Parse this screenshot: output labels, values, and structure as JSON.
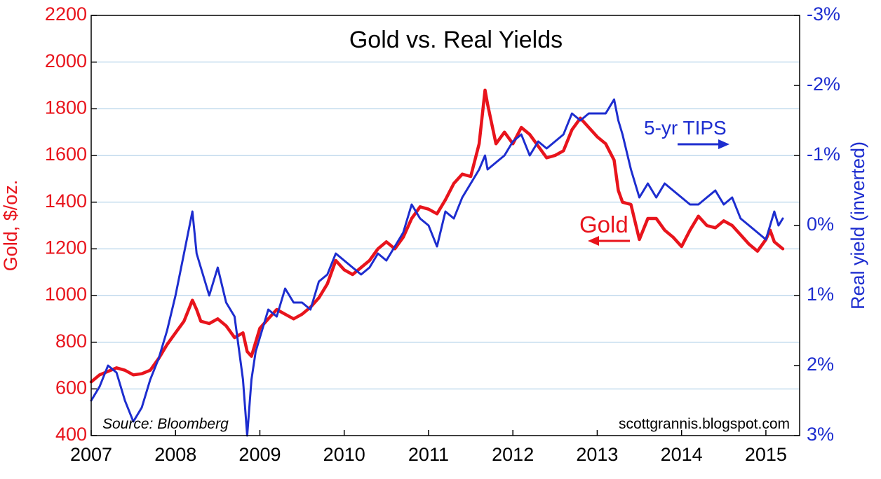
{
  "chart_data": {
    "type": "line",
    "title": "Gold vs. Real Yields",
    "ylabel_left": "Gold, $/oz.",
    "ylabel_right": "Real yield (inverted)",
    "source": "Source: Bloomberg",
    "credit": "scottgrannis.blogspot.com",
    "xlim": [
      2007,
      2015.4
    ],
    "ylim_left": [
      400,
      2200
    ],
    "ylim_right": [
      3,
      -3
    ],
    "x_ticks": [
      2007,
      2008,
      2009,
      2010,
      2011,
      2012,
      2013,
      2014,
      2015
    ],
    "x_tick_labels": [
      "2007",
      "2008",
      "2009",
      "2010",
      "2011",
      "2012",
      "2013",
      "2014",
      "2015"
    ],
    "y_left_ticks": [
      400,
      600,
      800,
      1000,
      1200,
      1400,
      1600,
      1800,
      2000,
      2200
    ],
    "y_left_tick_labels": [
      "400",
      "600",
      "800",
      "1000",
      "1200",
      "1400",
      "1600",
      "1800",
      "2000",
      "2200"
    ],
    "y_right_ticks": [
      3,
      2,
      1,
      0,
      -1,
      -2,
      -3
    ],
    "y_right_tick_labels": [
      "3%",
      "2%",
      "1%",
      "0%",
      "-1%",
      "-2%",
      "-3%"
    ],
    "grid": "horizontal",
    "colors": {
      "gold": "#e8141c",
      "tips": "#1d2dcf",
      "grid": "#9fc6e3"
    },
    "annotations": {
      "gold_label": "Gold",
      "tips_label": "5-yr TIPS"
    },
    "series": [
      {
        "axis": "left",
        "color": "#e8141c",
        "points": [
          [
            2007.0,
            630
          ],
          [
            2007.1,
            660
          ],
          [
            2007.2,
            675
          ],
          [
            2007.3,
            690
          ],
          [
            2007.4,
            680
          ],
          [
            2007.5,
            660
          ],
          [
            2007.6,
            665
          ],
          [
            2007.7,
            680
          ],
          [
            2007.8,
            730
          ],
          [
            2007.9,
            790
          ],
          [
            2008.0,
            840
          ],
          [
            2008.1,
            890
          ],
          [
            2008.2,
            980
          ],
          [
            2008.25,
            940
          ],
          [
            2008.3,
            890
          ],
          [
            2008.4,
            880
          ],
          [
            2008.5,
            900
          ],
          [
            2008.6,
            870
          ],
          [
            2008.7,
            820
          ],
          [
            2008.8,
            840
          ],
          [
            2008.85,
            760
          ],
          [
            2008.9,
            740
          ],
          [
            2008.95,
            800
          ],
          [
            2009.0,
            860
          ],
          [
            2009.1,
            900
          ],
          [
            2009.2,
            940
          ],
          [
            2009.3,
            920
          ],
          [
            2009.4,
            900
          ],
          [
            2009.5,
            920
          ],
          [
            2009.6,
            950
          ],
          [
            2009.7,
            990
          ],
          [
            2009.8,
            1050
          ],
          [
            2009.9,
            1150
          ],
          [
            2010.0,
            1110
          ],
          [
            2010.1,
            1090
          ],
          [
            2010.2,
            1120
          ],
          [
            2010.3,
            1150
          ],
          [
            2010.4,
            1200
          ],
          [
            2010.5,
            1230
          ],
          [
            2010.6,
            1200
          ],
          [
            2010.7,
            1250
          ],
          [
            2010.8,
            1330
          ],
          [
            2010.9,
            1380
          ],
          [
            2011.0,
            1370
          ],
          [
            2011.1,
            1350
          ],
          [
            2011.2,
            1410
          ],
          [
            2011.3,
            1480
          ],
          [
            2011.4,
            1520
          ],
          [
            2011.5,
            1510
          ],
          [
            2011.6,
            1650
          ],
          [
            2011.67,
            1880
          ],
          [
            2011.7,
            1820
          ],
          [
            2011.8,
            1650
          ],
          [
            2011.9,
            1700
          ],
          [
            2012.0,
            1650
          ],
          [
            2012.1,
            1720
          ],
          [
            2012.2,
            1690
          ],
          [
            2012.3,
            1640
          ],
          [
            2012.4,
            1590
          ],
          [
            2012.5,
            1600
          ],
          [
            2012.6,
            1620
          ],
          [
            2012.7,
            1710
          ],
          [
            2012.8,
            1760
          ],
          [
            2012.9,
            1720
          ],
          [
            2013.0,
            1680
          ],
          [
            2013.1,
            1650
          ],
          [
            2013.2,
            1580
          ],
          [
            2013.25,
            1450
          ],
          [
            2013.3,
            1400
          ],
          [
            2013.4,
            1390
          ],
          [
            2013.5,
            1240
          ],
          [
            2013.6,
            1330
          ],
          [
            2013.7,
            1330
          ],
          [
            2013.8,
            1280
          ],
          [
            2013.9,
            1250
          ],
          [
            2014.0,
            1210
          ],
          [
            2014.1,
            1280
          ],
          [
            2014.2,
            1340
          ],
          [
            2014.3,
            1300
          ],
          [
            2014.4,
            1290
          ],
          [
            2014.5,
            1320
          ],
          [
            2014.6,
            1300
          ],
          [
            2014.7,
            1260
          ],
          [
            2014.8,
            1220
          ],
          [
            2014.9,
            1190
          ],
          [
            2015.0,
            1240
          ],
          [
            2015.05,
            1280
          ],
          [
            2015.1,
            1230
          ],
          [
            2015.2,
            1200
          ]
        ]
      },
      {
        "axis": "right",
        "color": "#1d2dcf",
        "points": [
          [
            2007.0,
            2.5
          ],
          [
            2007.1,
            2.3
          ],
          [
            2007.2,
            2.0
          ],
          [
            2007.3,
            2.1
          ],
          [
            2007.4,
            2.5
          ],
          [
            2007.5,
            2.8
          ],
          [
            2007.6,
            2.6
          ],
          [
            2007.7,
            2.2
          ],
          [
            2007.8,
            1.9
          ],
          [
            2007.9,
            1.5
          ],
          [
            2008.0,
            1.0
          ],
          [
            2008.1,
            0.4
          ],
          [
            2008.2,
            -0.2
          ],
          [
            2008.25,
            0.4
          ],
          [
            2008.3,
            0.6
          ],
          [
            2008.4,
            1.0
          ],
          [
            2008.5,
            0.6
          ],
          [
            2008.6,
            1.1
          ],
          [
            2008.7,
            1.3
          ],
          [
            2008.8,
            2.2
          ],
          [
            2008.85,
            3.0
          ],
          [
            2008.9,
            2.2
          ],
          [
            2008.95,
            1.8
          ],
          [
            2009.0,
            1.6
          ],
          [
            2009.1,
            1.2
          ],
          [
            2009.2,
            1.3
          ],
          [
            2009.3,
            0.9
          ],
          [
            2009.4,
            1.1
          ],
          [
            2009.5,
            1.1
          ],
          [
            2009.6,
            1.2
          ],
          [
            2009.7,
            0.8
          ],
          [
            2009.8,
            0.7
          ],
          [
            2009.9,
            0.4
          ],
          [
            2010.0,
            0.5
          ],
          [
            2010.1,
            0.6
          ],
          [
            2010.2,
            0.7
          ],
          [
            2010.3,
            0.6
          ],
          [
            2010.4,
            0.4
          ],
          [
            2010.5,
            0.5
          ],
          [
            2010.6,
            0.3
          ],
          [
            2010.7,
            0.1
          ],
          [
            2010.8,
            -0.3
          ],
          [
            2010.9,
            -0.1
          ],
          [
            2011.0,
            0.0
          ],
          [
            2011.1,
            0.3
          ],
          [
            2011.2,
            -0.2
          ],
          [
            2011.3,
            -0.1
          ],
          [
            2011.4,
            -0.4
          ],
          [
            2011.5,
            -0.6
          ],
          [
            2011.6,
            -0.8
          ],
          [
            2011.67,
            -1.0
          ],
          [
            2011.7,
            -0.8
          ],
          [
            2011.8,
            -0.9
          ],
          [
            2011.9,
            -1.0
          ],
          [
            2012.0,
            -1.2
          ],
          [
            2012.1,
            -1.3
          ],
          [
            2012.2,
            -1.0
          ],
          [
            2012.3,
            -1.2
          ],
          [
            2012.4,
            -1.1
          ],
          [
            2012.5,
            -1.2
          ],
          [
            2012.6,
            -1.3
          ],
          [
            2012.7,
            -1.6
          ],
          [
            2012.8,
            -1.5
          ],
          [
            2012.9,
            -1.6
          ],
          [
            2013.0,
            -1.6
          ],
          [
            2013.1,
            -1.6
          ],
          [
            2013.2,
            -1.8
          ],
          [
            2013.25,
            -1.5
          ],
          [
            2013.3,
            -1.3
          ],
          [
            2013.4,
            -0.8
          ],
          [
            2013.5,
            -0.4
          ],
          [
            2013.6,
            -0.6
          ],
          [
            2013.7,
            -0.4
          ],
          [
            2013.8,
            -0.6
          ],
          [
            2013.9,
            -0.5
          ],
          [
            2014.0,
            -0.4
          ],
          [
            2014.1,
            -0.3
          ],
          [
            2014.2,
            -0.3
          ],
          [
            2014.3,
            -0.4
          ],
          [
            2014.4,
            -0.5
          ],
          [
            2014.5,
            -0.3
          ],
          [
            2014.6,
            -0.4
          ],
          [
            2014.7,
            -0.1
          ],
          [
            2014.8,
            0.0
          ],
          [
            2014.9,
            0.1
          ],
          [
            2015.0,
            0.2
          ],
          [
            2015.05,
            0.0
          ],
          [
            2015.1,
            -0.2
          ],
          [
            2015.15,
            0.0
          ],
          [
            2015.2,
            -0.1
          ]
        ]
      }
    ]
  }
}
